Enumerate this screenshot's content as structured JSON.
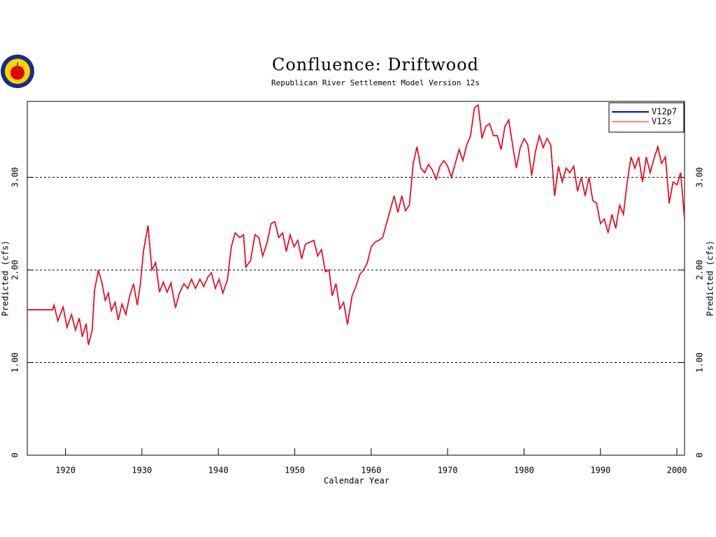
{
  "chart_data": {
    "type": "line",
    "title": "Confluence: Driftwood",
    "subtitle": "Republican River Settlement Model Version 12s",
    "x_label": "Calendar Year",
    "y_label": "Predicted (cfs)",
    "y2_label": "Predicted (cfs)",
    "xlim": [
      1915,
      2001
    ],
    "ylim": [
      0,
      3.82
    ],
    "xticks": [
      1920,
      1930,
      1940,
      1950,
      1960,
      1970,
      1980,
      1990,
      2000
    ],
    "yticks": [
      0,
      {
        "value": 1,
        "label": "1.00"
      },
      {
        "value": 2,
        "label": "2.00"
      },
      {
        "value": 3,
        "label": "3.00"
      }
    ],
    "grid": true,
    "legend": "upper right",
    "x": [
      1915,
      1918.3,
      1918.5,
      1919,
      1919.7,
      1920.2,
      1920.8,
      1921.3,
      1921.8,
      1922.2,
      1922.7,
      1923,
      1923.5,
      1923.8,
      1924.3,
      1924.8,
      1925.2,
      1925.6,
      1926,
      1926.5,
      1926.9,
      1927.4,
      1927.9,
      1928.4,
      1928.9,
      1929.4,
      1929.8,
      1930.2,
      1930.8,
      1931.3,
      1931.8,
      1932.3,
      1932.8,
      1933.3,
      1933.8,
      1934.4,
      1934.9,
      1935.5,
      1936,
      1936.5,
      1937,
      1937.6,
      1938.1,
      1938.6,
      1939.1,
      1939.6,
      1940.1,
      1940.6,
      1941.2,
      1941.7,
      1942.2,
      1942.8,
      1943.3,
      1943.6,
      1944.2,
      1944.8,
      1945.3,
      1945.8,
      1946.4,
      1946.9,
      1947.4,
      1947.9,
      1948.4,
      1948.9,
      1949.4,
      1949.9,
      1950.4,
      1950.9,
      1951.4,
      1952,
      1952.5,
      1953,
      1953.5,
      1954,
      1954.5,
      1954.9,
      1955.4,
      1955.9,
      1956.4,
      1956.9,
      1957.5,
      1958,
      1958.5,
      1959,
      1959.5,
      1960,
      1960.5,
      1961,
      1961.5,
      1962,
      1962.5,
      1963,
      1963.5,
      1964,
      1964.5,
      1965,
      1965.5,
      1966,
      1966.5,
      1967,
      1967.5,
      1968,
      1968.5,
      1969,
      1969.5,
      1970,
      1970.5,
      1971,
      1971.5,
      1972,
      1972.5,
      1973,
      1973.5,
      1974,
      1974.5,
      1975,
      1975.5,
      1976,
      1976.5,
      1977,
      1977.5,
      1978,
      1978.5,
      1979,
      1979.5,
      1980,
      1980.5,
      1981,
      1981.5,
      1982,
      1982.5,
      1983,
      1983.5,
      1984,
      1984.5,
      1985,
      1985.5,
      1986,
      1986.5,
      1987,
      1987.5,
      1988,
      1988.5,
      1989,
      1989.5,
      1990,
      1990.5,
      1991,
      1991.5,
      1992,
      1992.5,
      1993,
      1993.5,
      1994,
      1994.5,
      1995,
      1995.5,
      1996,
      1996.5,
      1997,
      1997.5,
      1998,
      1998.5,
      1999,
      1999.5,
      2000,
      2000.5,
      2001
    ],
    "series": [
      {
        "name": "V12p7",
        "color": "#0000ff",
        "values": [
          1.57,
          1.57,
          1.62,
          1.45,
          1.6,
          1.38,
          1.52,
          1.35,
          1.48,
          1.28,
          1.42,
          1.19,
          1.35,
          1.78,
          2.0,
          1.85,
          1.67,
          1.75,
          1.56,
          1.65,
          1.46,
          1.63,
          1.52,
          1.72,
          1.85,
          1.62,
          1.85,
          2.2,
          2.48,
          2.0,
          2.08,
          1.76,
          1.87,
          1.76,
          1.86,
          1.59,
          1.75,
          1.85,
          1.8,
          1.9,
          1.8,
          1.9,
          1.82,
          1.92,
          1.97,
          1.8,
          1.9,
          1.75,
          1.9,
          2.25,
          2.4,
          2.35,
          2.38,
          2.03,
          2.1,
          2.38,
          2.35,
          2.15,
          2.3,
          2.5,
          2.52,
          2.35,
          2.4,
          2.2,
          2.38,
          2.25,
          2.32,
          2.12,
          2.28,
          2.3,
          2.32,
          2.15,
          2.22,
          1.98,
          2.0,
          1.72,
          1.85,
          1.58,
          1.65,
          1.41,
          1.72,
          1.82,
          1.95,
          2.0,
          2.08,
          2.25,
          2.3,
          2.32,
          2.35,
          2.5,
          2.65,
          2.8,
          2.62,
          2.8,
          2.64,
          2.7,
          3.15,
          3.33,
          3.1,
          3.05,
          3.14,
          3.08,
          2.98,
          3.12,
          3.18,
          3.12,
          3.0,
          3.15,
          3.3,
          3.18,
          3.35,
          3.45,
          3.75,
          3.78,
          3.42,
          3.55,
          3.58,
          3.45,
          3.45,
          3.3,
          3.55,
          3.62,
          3.35,
          3.1,
          3.32,
          3.42,
          3.35,
          3.02,
          3.28,
          3.45,
          3.32,
          3.42,
          3.35,
          2.8,
          3.12,
          2.95,
          3.1,
          3.05,
          3.12,
          2.85,
          3.0,
          2.8,
          3.0,
          2.75,
          2.72,
          2.5,
          2.55,
          2.4,
          2.6,
          2.45,
          2.7,
          2.6,
          2.95,
          3.22,
          3.1,
          3.22,
          2.95,
          3.22,
          3.05,
          3.2,
          3.33,
          3.15,
          3.22,
          2.72,
          2.95,
          2.92,
          3.05,
          2.55
        ]
      },
      {
        "name": "V12s",
        "color": "#ff0000",
        "values": [
          1.57,
          1.57,
          1.62,
          1.45,
          1.6,
          1.38,
          1.52,
          1.35,
          1.48,
          1.28,
          1.42,
          1.19,
          1.35,
          1.78,
          2.0,
          1.85,
          1.67,
          1.75,
          1.56,
          1.65,
          1.46,
          1.63,
          1.52,
          1.72,
          1.85,
          1.62,
          1.85,
          2.2,
          2.48,
          2.0,
          2.08,
          1.76,
          1.87,
          1.76,
          1.86,
          1.59,
          1.75,
          1.85,
          1.8,
          1.9,
          1.8,
          1.9,
          1.82,
          1.92,
          1.97,
          1.8,
          1.9,
          1.75,
          1.9,
          2.25,
          2.4,
          2.35,
          2.38,
          2.03,
          2.1,
          2.38,
          2.35,
          2.15,
          2.3,
          2.5,
          2.52,
          2.35,
          2.4,
          2.2,
          2.38,
          2.25,
          2.32,
          2.12,
          2.28,
          2.3,
          2.32,
          2.15,
          2.22,
          1.98,
          2.0,
          1.72,
          1.85,
          1.58,
          1.65,
          1.41,
          1.72,
          1.82,
          1.95,
          2.0,
          2.08,
          2.25,
          2.3,
          2.32,
          2.35,
          2.5,
          2.65,
          2.8,
          2.62,
          2.8,
          2.64,
          2.7,
          3.15,
          3.33,
          3.1,
          3.05,
          3.14,
          3.08,
          2.98,
          3.12,
          3.18,
          3.12,
          3.0,
          3.15,
          3.3,
          3.18,
          3.35,
          3.45,
          3.75,
          3.78,
          3.42,
          3.55,
          3.58,
          3.45,
          3.45,
          3.3,
          3.55,
          3.62,
          3.35,
          3.1,
          3.32,
          3.42,
          3.35,
          3.02,
          3.28,
          3.45,
          3.32,
          3.42,
          3.35,
          2.8,
          3.12,
          2.95,
          3.1,
          3.05,
          3.12,
          2.85,
          3.0,
          2.8,
          3.0,
          2.75,
          2.72,
          2.5,
          2.55,
          2.4,
          2.6,
          2.45,
          2.7,
          2.6,
          2.95,
          3.22,
          3.1,
          3.22,
          2.95,
          3.22,
          3.05,
          3.2,
          3.33,
          3.15,
          3.22,
          2.72,
          2.95,
          2.92,
          3.05,
          2.55
        ]
      }
    ]
  }
}
